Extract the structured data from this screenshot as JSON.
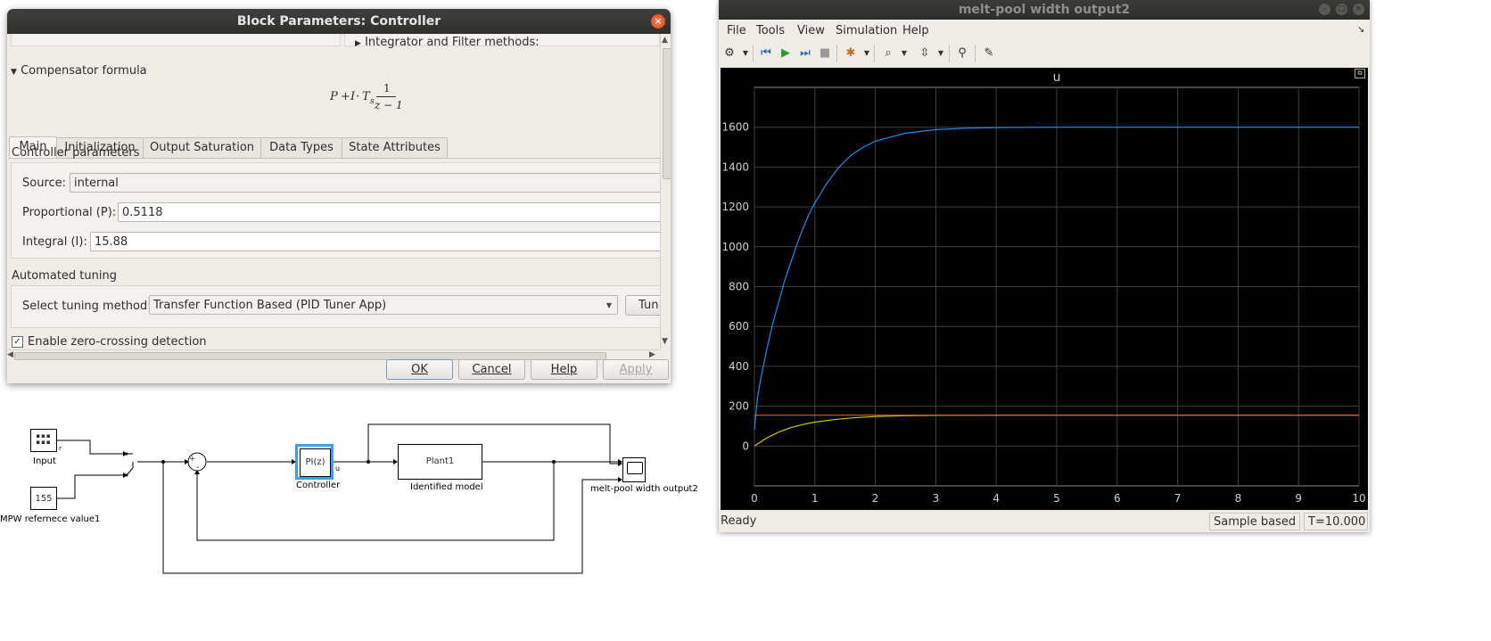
{
  "dialog": {
    "title": "Block Parameters: Controller",
    "close_glyph": "×",
    "hidden_section": "Integrator and Filter methods:",
    "compensator_header": "Compensator formula",
    "formula": {
      "p": "P",
      "plus": "+",
      "i": "I",
      "dot": "·",
      "t": "T",
      "sub": "s",
      "num": "1",
      "den": "z − 1"
    },
    "tabs": [
      "Main",
      "Initialization",
      "Output Saturation",
      "Data Types",
      "State Attributes"
    ],
    "active_tab": "Main",
    "controller_params_header": "Controller parameters",
    "source_label": "Source:",
    "source_value": "internal",
    "p_label": "Proportional (P):",
    "p_value": "0.5118",
    "i_label": "Integral (I):",
    "i_value": "15.88",
    "tuning_header": "Automated tuning",
    "tuning_label": "Select tuning method:",
    "tuning_value": "Transfer Function Based (PID Tuner App)",
    "tune_button": "Tun",
    "zero_crossing_label": "Enable zero-crossing detection",
    "zero_crossing_checked": true,
    "buttons": {
      "ok": "OK",
      "cancel": "Cancel",
      "help": "Help",
      "apply": "Apply"
    }
  },
  "scope": {
    "title": "melt-pool width output2",
    "menu": [
      "File",
      "Tools",
      "View",
      "Simulation",
      "Help"
    ],
    "toolbar_icons": [
      "gear-icon",
      "step-back-icon",
      "run-icon",
      "step-forward-icon",
      "stop-icon",
      "highlight-icon",
      "zoom-icon",
      "fit-icon",
      "pin-icon",
      "edit-icon"
    ],
    "status_text": "Ready",
    "sample_based": "Sample based",
    "time": "T=10.000",
    "background": "#000000",
    "grid_color": "#404040"
  },
  "chart_data": {
    "type": "line",
    "title": "u",
    "xlabel": "",
    "ylabel": "",
    "xlim": [
      0,
      10
    ],
    "ylim": [
      -200,
      1800
    ],
    "xticks": [
      0,
      1,
      2,
      3,
      4,
      5,
      6,
      7,
      8,
      9,
      10
    ],
    "yticks": [
      0,
      200,
      400,
      600,
      800,
      1000,
      1200,
      1400,
      1600
    ],
    "grid": true,
    "series": [
      {
        "color": "#1f8ee8",
        "x": [
          0,
          0.05,
          0.1,
          0.2,
          0.3,
          0.4,
          0.5,
          0.6,
          0.7,
          0.8,
          0.9,
          1.0,
          1.2,
          1.4,
          1.6,
          1.8,
          2.0,
          2.5,
          3.0,
          3.5,
          4.0,
          5.0,
          6.0,
          7.0,
          8.0,
          9.0,
          10.0
        ],
        "y": [
          80,
          240,
          330,
          480,
          610,
          720,
          830,
          920,
          1010,
          1090,
          1160,
          1220,
          1320,
          1400,
          1460,
          1500,
          1530,
          1570,
          1588,
          1595,
          1598,
          1600,
          1600,
          1600,
          1600,
          1600,
          1600
        ]
      },
      {
        "color": "#d8c21a",
        "x": [
          0,
          0.2,
          0.4,
          0.6,
          0.8,
          1.0,
          1.3,
          1.6,
          2.0,
          2.5,
          3.0,
          4.0,
          5.0,
          6.0,
          7.0,
          8.0,
          9.0,
          10.0
        ],
        "y": [
          0,
          40,
          70,
          92,
          108,
          120,
          132,
          141,
          148,
          152,
          154,
          155,
          155,
          155,
          155,
          155,
          155,
          155
        ]
      },
      {
        "color": "#e05a1a",
        "x": [
          0,
          10
        ],
        "y": [
          155,
          155
        ]
      }
    ]
  },
  "diagram": {
    "input_label": "Input",
    "input_port": "r",
    "const_value": "155",
    "const_label": "MPW refernece value1",
    "controller_text": "PI(z)",
    "controller_label": "Controller",
    "controller_port": "u",
    "plant_text": "Plant1",
    "plant_label": "Identified model",
    "scope_label": "melt-pool width output2",
    "sum_plus": "+",
    "sum_minus": "-"
  }
}
